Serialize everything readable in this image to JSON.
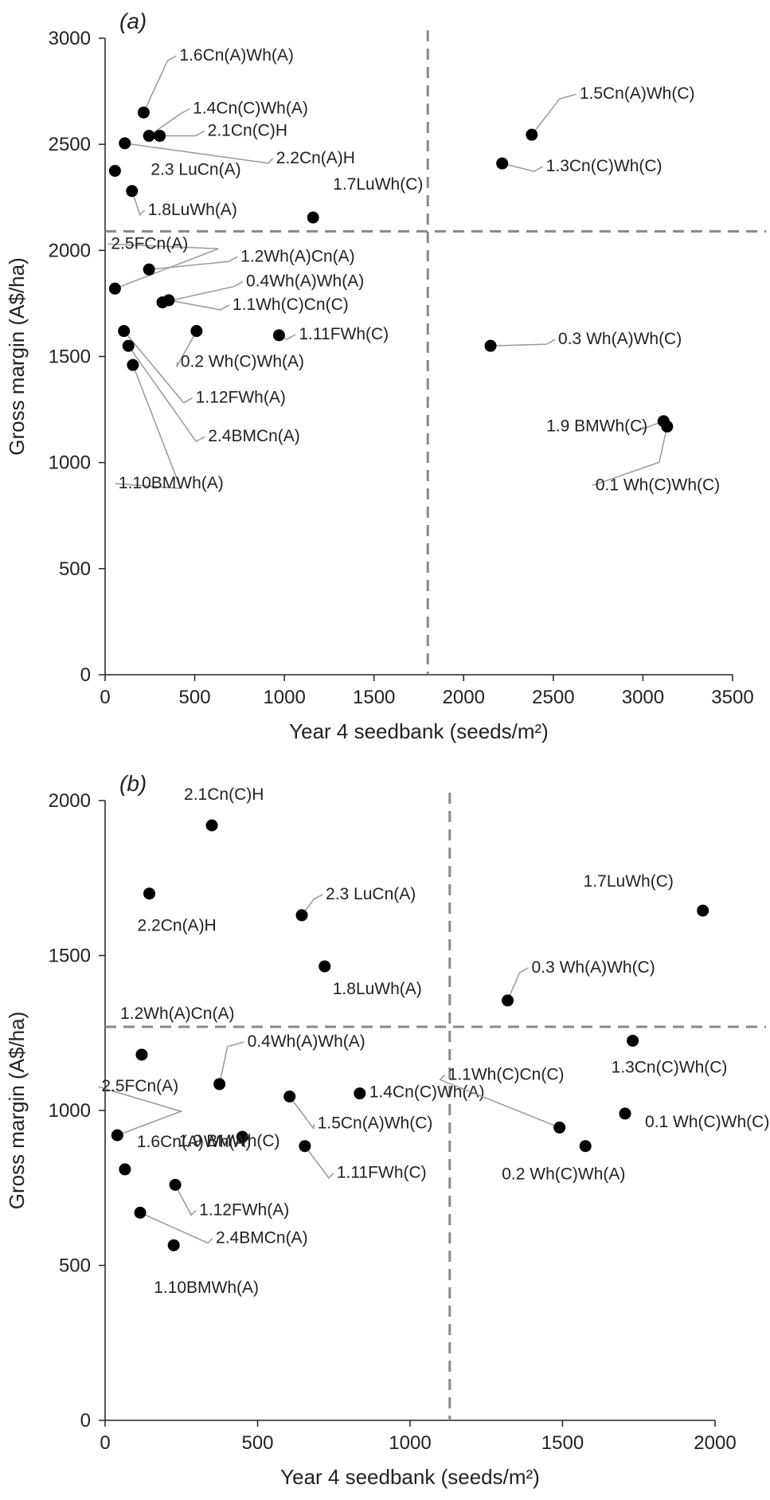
{
  "chart_data": [
    {
      "type": "scatter",
      "panel_label": "(a)",
      "xlabel": "Year 4 seedbank (seeds/m²)",
      "ylabel": "Gross margin (A$/ha)",
      "xlim": [
        0,
        3500
      ],
      "ylim": [
        0,
        3000
      ],
      "xticks": [
        0,
        500,
        1000,
        1500,
        2000,
        2500,
        3000,
        3500
      ],
      "yticks": [
        0,
        500,
        1000,
        1500,
        2000,
        2500,
        3000
      ],
      "grid": false,
      "reference_lines": {
        "x": 1800,
        "y": 2090
      },
      "marker_color": "#000000",
      "reference_line_color": "#888888",
      "points": [
        {
          "label": "1.6Cn(A)Wh(A)",
          "x": 215,
          "y": 2650
        },
        {
          "label": "1.4Cn(C)Wh(A)",
          "x": 245,
          "y": 2540
        },
        {
          "label": "2.1Cn(C)H",
          "x": 305,
          "y": 2540
        },
        {
          "label": "2.2Cn(A)H",
          "x": 110,
          "y": 2505
        },
        {
          "label": "2.3 LuCn(A)",
          "x": 55,
          "y": 2375
        },
        {
          "label": "1.8LuWh(A)",
          "x": 150,
          "y": 2280
        },
        {
          "label": "1.7LuWh(C)",
          "x": 1160,
          "y": 2155
        },
        {
          "label": "1.5Cn(A)Wh(C)",
          "x": 2380,
          "y": 2545
        },
        {
          "label": "1.3Cn(C)Wh(C)",
          "x": 2215,
          "y": 2410
        },
        {
          "label": "2.5FCn(A)",
          "x": 55,
          "y": 1820
        },
        {
          "label": "1.2Wh(A)Cn(A)",
          "x": 245,
          "y": 1910
        },
        {
          "label": "0.4Wh(A)Wh(A)",
          "x": 320,
          "y": 1755
        },
        {
          "label": "1.1Wh(C)Cn(C)",
          "x": 355,
          "y": 1765
        },
        {
          "label": "0.2 Wh(C)Wh(A)",
          "x": 510,
          "y": 1620
        },
        {
          "label": "1.11FWh(C)",
          "x": 970,
          "y": 1600
        },
        {
          "label": "1.12FWh(A)",
          "x": 105,
          "y": 1620
        },
        {
          "label": "2.4BMCn(A)",
          "x": 130,
          "y": 1550
        },
        {
          "label": "1.10BMWh(A)",
          "x": 155,
          "y": 1460
        },
        {
          "label": "0.3 Wh(A)Wh(C)",
          "x": 2150,
          "y": 1550
        },
        {
          "label": "1.9 BMWh(C)",
          "x": 3115,
          "y": 1195
        },
        {
          "label": "0.1 Wh(C)Wh(C)",
          "x": 3135,
          "y": 1170
        }
      ]
    },
    {
      "type": "scatter",
      "panel_label": "(b)",
      "xlabel": "Year 4 seedbank (seeds/m²)",
      "ylabel": "Gross margin (A$/ha)",
      "xlim": [
        0,
        2000
      ],
      "ylim": [
        0,
        2000
      ],
      "xticks": [
        0,
        500,
        1000,
        1500,
        2000
      ],
      "yticks": [
        0,
        500,
        1000,
        1500,
        2000
      ],
      "grid": false,
      "reference_lines": {
        "x": 1130,
        "y": 1270
      },
      "marker_color": "#000000",
      "reference_line_color": "#888888",
      "points": [
        {
          "label": "2.1Cn(C)H",
          "x": 350,
          "y": 1920
        },
        {
          "label": "2.2Cn(A)H",
          "x": 145,
          "y": 1700
        },
        {
          "label": "2.3 LuCn(A)",
          "x": 645,
          "y": 1630
        },
        {
          "label": "1.8LuWh(A)",
          "x": 720,
          "y": 1465
        },
        {
          "label": "1.7LuWh(C)",
          "x": 1960,
          "y": 1645
        },
        {
          "label": "0.3 Wh(A)Wh(C)",
          "x": 1320,
          "y": 1355
        },
        {
          "label": "1.2Wh(A)Cn(A)",
          "x": 120,
          "y": 1180
        },
        {
          "label": "0.4Wh(A)Wh(A)",
          "x": 375,
          "y": 1085
        },
        {
          "label": "2.5FCn(A)",
          "x": 40,
          "y": 920
        },
        {
          "label": "1.9 BMWh(C)",
          "x": 450,
          "y": 915
        },
        {
          "label": "1.5Cn(A)Wh(C)",
          "x": 605,
          "y": 1045
        },
        {
          "label": "1.4Cn(C)Wh(A)",
          "x": 835,
          "y": 1055
        },
        {
          "label": "1.6Cn(A)Wh(A)",
          "x": 65,
          "y": 810
        },
        {
          "label": "1.11FWh(C)",
          "x": 655,
          "y": 885
        },
        {
          "label": "1.12FWh(A)",
          "x": 230,
          "y": 760
        },
        {
          "label": "2.4BMCn(A)",
          "x": 115,
          "y": 670
        },
        {
          "label": "1.10BMWh(A)",
          "x": 225,
          "y": 565
        },
        {
          "label": "1.1Wh(C)Cn(C)",
          "x": 1490,
          "y": 945
        },
        {
          "label": "1.3Cn(C)Wh(C)",
          "x": 1730,
          "y": 1225
        },
        {
          "label": "0.1 Wh(C)Wh(C)",
          "x": 1705,
          "y": 990
        },
        {
          "label": "0.2 Wh(C)Wh(A)",
          "x": 1575,
          "y": 885
        }
      ]
    }
  ]
}
